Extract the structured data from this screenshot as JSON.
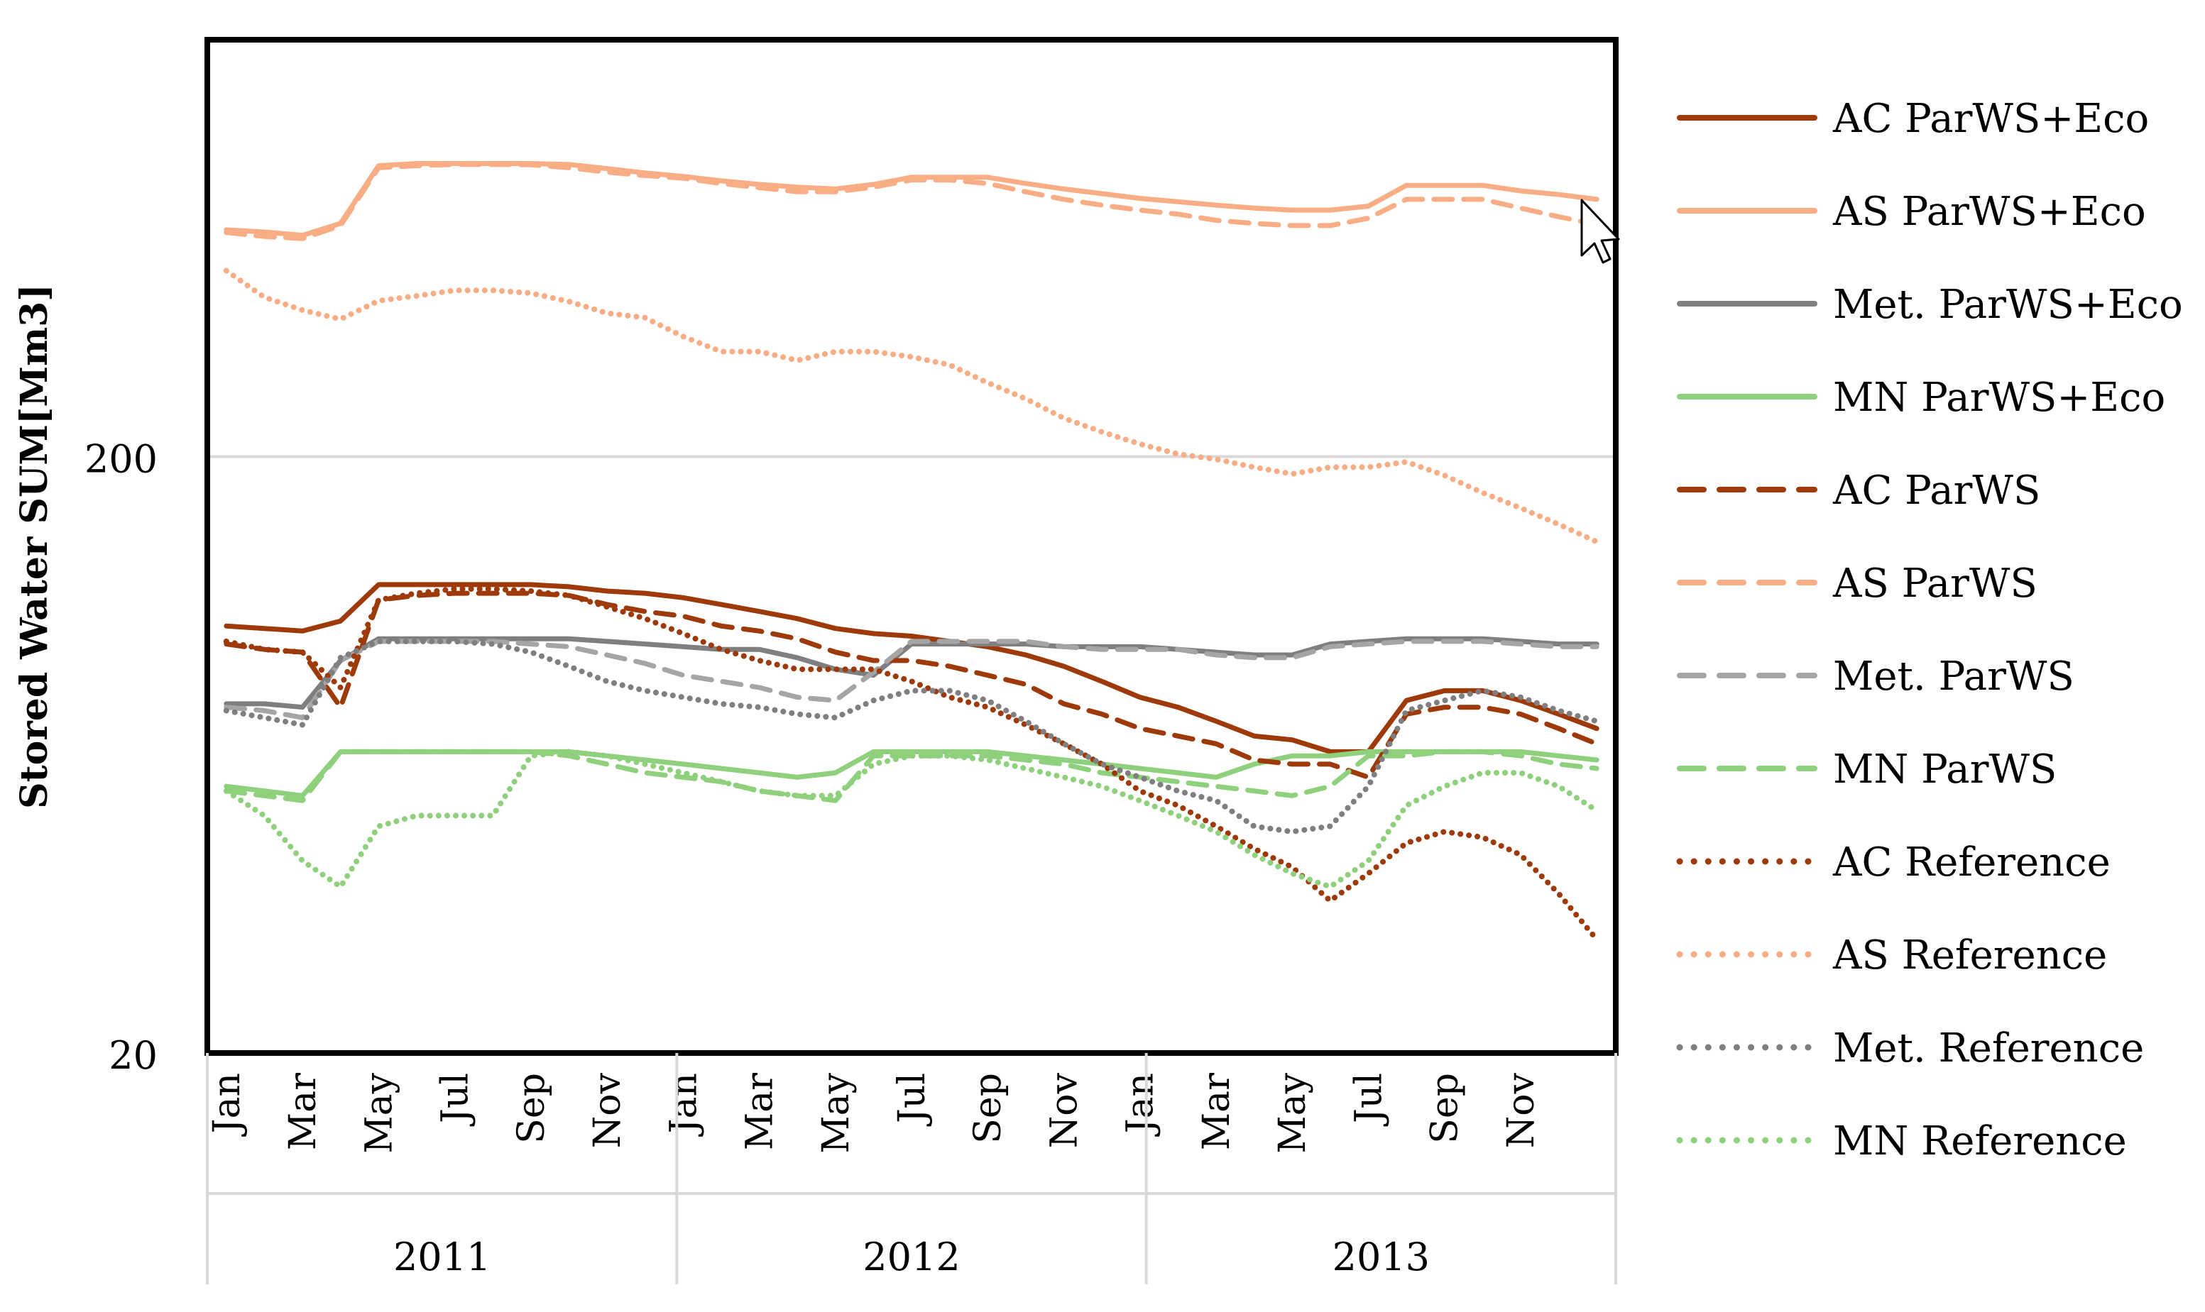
{
  "chart_data": {
    "type": "line",
    "title": "",
    "ylabel": "Stored Water SUM[Mm3]",
    "xlabel": "",
    "yscale": "log",
    "ylim": [
      20,
      1000
    ],
    "y_ticks": [
      {
        "value": 20,
        "label": "20"
      },
      {
        "value": 200,
        "label": "200"
      }
    ],
    "gridlines": [
      200
    ],
    "month_labels": [
      "Jan",
      "Mar",
      "May",
      "Jul",
      "Sep",
      "Nov",
      "Jan",
      "Mar",
      "May",
      "Jul",
      "Sep",
      "Nov",
      "Jan",
      "Mar",
      "May",
      "Jul",
      "Sep",
      "Nov"
    ],
    "years": [
      "2011",
      "2012",
      "2013"
    ],
    "legend_position": "right",
    "colors": {
      "AC": "#9E3A0A",
      "AS": "#F8AD84",
      "Met": "#7F7F7F",
      "MetLight": "#A5A5A5",
      "MN": "#8ED07C"
    },
    "series": [
      {
        "name": "AC ParWS+Eco",
        "color": "#9E3A0A",
        "style": "solid",
        "values": [
          104,
          103,
          102,
          106,
          122,
          122,
          122,
          122,
          122,
          121,
          119,
          118,
          116,
          113,
          110,
          107,
          103,
          101,
          100,
          98,
          96,
          93,
          89,
          84,
          79,
          76,
          72,
          68,
          67,
          64,
          64,
          78,
          81,
          81,
          78,
          74,
          70
        ]
      },
      {
        "name": "AS ParWS+Eco",
        "color": "#F8AD84",
        "style": "solid",
        "values": [
          480,
          476,
          470,
          492,
          615,
          620,
          620,
          620,
          620,
          618,
          608,
          598,
          590,
          580,
          572,
          566,
          562,
          572,
          588,
          588,
          588,
          574,
          562,
          552,
          542,
          535,
          528,
          522,
          518,
          518,
          526,
          570,
          570,
          570,
          558,
          550,
          540
        ]
      },
      {
        "name": "Met. ParWS+Eco",
        "color": "#7F7F7F",
        "style": "solid",
        "values": [
          77,
          77,
          76,
          91,
          99,
          99,
          99,
          99,
          99,
          99,
          98,
          97,
          96,
          95,
          95,
          92,
          88,
          86,
          97,
          97,
          97,
          97,
          96,
          96,
          96,
          95,
          94,
          93,
          93,
          97,
          98,
          99,
          99,
          99,
          98,
          97,
          97
        ]
      },
      {
        "name": "MN ParWS+Eco",
        "color": "#8ED07C",
        "style": "solid",
        "values": [
          56,
          55,
          54,
          64,
          64,
          64,
          64,
          64,
          64,
          64,
          63,
          62,
          61,
          60,
          59,
          58,
          59,
          64,
          64,
          64,
          64,
          63,
          62,
          61,
          60,
          59,
          58,
          61,
          63,
          63,
          64,
          64,
          64,
          64,
          64,
          63,
          62
        ]
      },
      {
        "name": "AC ParWS",
        "color": "#9E3A0A",
        "style": "dashed",
        "values": [
          97,
          95,
          94,
          76,
          115,
          117,
          118,
          118,
          118,
          117,
          113,
          110,
          108,
          104,
          102,
          99,
          94,
          91,
          91,
          89,
          86,
          83,
          77,
          74,
          70,
          68,
          66,
          62,
          61,
          61,
          58,
          74,
          76,
          76,
          74,
          70,
          66
        ]
      },
      {
        "name": "AS ParWS",
        "color": "#F8AD84",
        "style": "dashed",
        "values": [
          475,
          468,
          464,
          488,
          610,
          615,
          618,
          618,
          617,
          610,
          600,
          592,
          586,
          574,
          565,
          556,
          556,
          566,
          582,
          582,
          574,
          556,
          540,
          528,
          518,
          510,
          498,
          492,
          488,
          488,
          502,
          540,
          540,
          540,
          522,
          505,
          490
        ]
      },
      {
        "name": "Met. ParWS",
        "color": "#A5A5A5",
        "style": "dashed",
        "values": [
          76,
          75,
          73,
          91,
          98,
          98,
          98,
          98,
          97,
          96,
          93,
          90,
          86,
          84,
          82,
          79,
          78,
          87,
          98,
          98,
          98,
          98,
          96,
          95,
          95,
          95,
          93,
          92,
          92,
          96,
          97,
          98,
          98,
          98,
          97,
          96,
          96
        ]
      },
      {
        "name": "MN ParWS",
        "color": "#8ED07C",
        "style": "dashed",
        "values": [
          55,
          54,
          53,
          64,
          64,
          64,
          64,
          64,
          64,
          63,
          61,
          59,
          58,
          57,
          55,
          54,
          53,
          63,
          63,
          63,
          63,
          62,
          61,
          59,
          58,
          57,
          56,
          55,
          54,
          56,
          63,
          63,
          64,
          64,
          63,
          61,
          60
        ]
      },
      {
        "name": "AC Reference",
        "color": "#9E3A0A",
        "style": "dotted",
        "values": [
          98,
          95,
          94,
          82,
          115,
          118,
          120,
          120,
          119,
          117,
          112,
          107,
          101,
          95,
          91,
          88,
          88,
          88,
          84,
          79,
          76,
          71,
          66,
          61,
          55,
          52,
          48,
          44,
          41,
          36,
          40,
          45,
          47,
          46,
          43,
          37,
          31
        ]
      },
      {
        "name": "AS Reference",
        "color": "#F8AD84",
        "style": "dotted",
        "values": [
          410,
          370,
          352,
          340,
          365,
          372,
          380,
          380,
          376,
          364,
          348,
          342,
          318,
          300,
          300,
          290,
          300,
          300,
          294,
          285,
          266,
          250,
          232,
          220,
          210,
          202,
          198,
          192,
          187,
          192,
          192,
          196,
          186,
          174,
          164,
          154,
          144
        ]
      },
      {
        "name": "Met. Reference",
        "color": "#7F7F7F",
        "style": "dotted",
        "values": [
          75,
          73,
          71,
          92,
          98,
          98,
          98,
          97,
          94,
          89,
          84,
          81,
          79,
          77,
          76,
          74,
          73,
          78,
          81,
          81,
          78,
          72,
          66,
          61,
          58,
          55,
          53,
          48,
          47,
          48,
          56,
          75,
          78,
          81,
          79,
          75,
          72
        ]
      },
      {
        "name": "MN Reference",
        "color": "#8ED07C",
        "style": "dotted",
        "values": [
          55,
          50,
          42,
          38,
          48,
          50,
          50,
          50,
          63,
          64,
          63,
          61,
          59,
          57,
          55,
          54,
          54,
          61,
          63,
          63,
          62,
          60,
          58,
          56,
          53,
          50,
          47,
          43,
          40,
          38,
          42,
          52,
          56,
          59,
          59,
          56,
          51
        ]
      }
    ]
  }
}
